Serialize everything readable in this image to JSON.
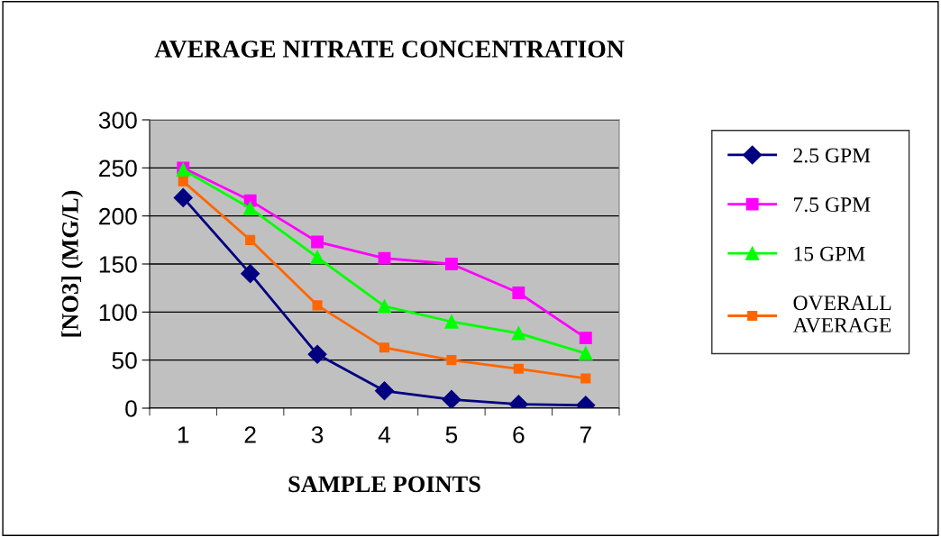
{
  "chart_data": {
    "type": "line",
    "title": "AVERAGE NITRATE CONCENTRATION",
    "xlabel": "SAMPLE POINTS",
    "ylabel": "[NO3] (MG/L)",
    "categories": [
      "1",
      "2",
      "3",
      "4",
      "5",
      "6",
      "7"
    ],
    "series": [
      {
        "name": "2.5 GPM",
        "color": "#000080",
        "marker": "diamond",
        "values": [
          219,
          140,
          56,
          18,
          9,
          4,
          3
        ]
      },
      {
        "name": "7.5 GPM",
        "color": "#ff00ff",
        "marker": "square",
        "values": [
          250,
          216,
          173,
          156,
          150,
          120,
          73
        ]
      },
      {
        "name": "15 GPM",
        "color": "#00ff00",
        "marker": "triangle",
        "values": [
          248,
          208,
          157,
          106,
          90,
          78,
          57
        ]
      },
      {
        "name": "OVERALL\nAVERAGE",
        "color": "#ff6600",
        "marker": "square",
        "values": [
          236,
          175,
          107,
          63,
          50,
          41,
          31
        ]
      }
    ],
    "ylim": [
      0,
      300
    ],
    "yticks": [
      0,
      50,
      100,
      150,
      200,
      250,
      300
    ],
    "grid": "y",
    "legend": "right",
    "line_style": "solid"
  }
}
